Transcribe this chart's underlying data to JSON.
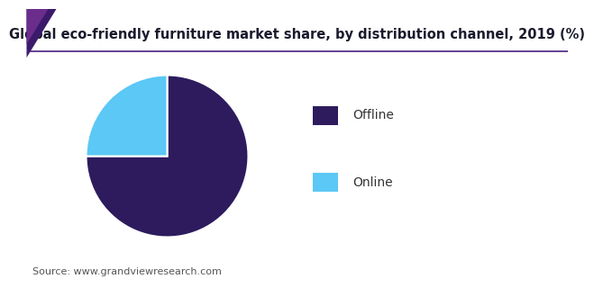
{
  "title": "Global eco-friendly furniture market share, by distribution channel, 2019 (%)",
  "slices": [
    {
      "label": "Offline",
      "value": 75.0,
      "color": "#2d1b5e"
    },
    {
      "label": "Online",
      "value": 25.0,
      "color": "#5bc8f5"
    }
  ],
  "startangle": 90,
  "counterclock": false,
  "legend_labels": [
    "Offline",
    "Online"
  ],
  "legend_colors": [
    "#2d1b5e",
    "#5bc8f5"
  ],
  "source_text": "Source: www.grandviewresearch.com",
  "title_fontsize": 10.5,
  "legend_fontsize": 10,
  "source_fontsize": 8,
  "bg_color": "#ffffff",
  "triangle_color1": "#6b2d8b",
  "triangle_color2": "#3b1a6b",
  "header_line_color": "#4b2080",
  "wedge_edge_color": "#ffffff",
  "wedge_linewidth": 1.5
}
